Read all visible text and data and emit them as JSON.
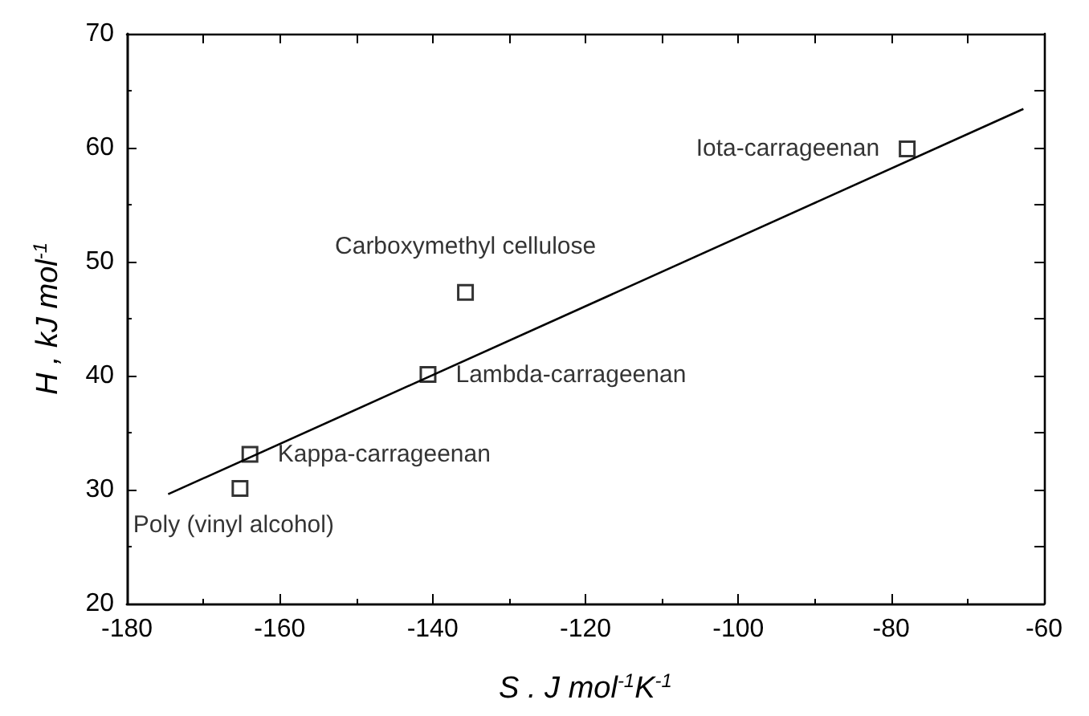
{
  "chart_data": {
    "type": "scatter",
    "xlabel": "S . J mol$^{-1}$K$^{-1}$",
    "ylabel": "H , kJ mol$^{-1}$",
    "xlim": [
      -180,
      -60
    ],
    "xticks": [
      -180,
      -160,
      -140,
      -120,
      -100,
      -80,
      -60
    ],
    "ylim": [
      20,
      70
    ],
    "yticks": [
      20,
      30,
      40,
      50,
      60,
      70
    ],
    "grid": false,
    "marker": "square",
    "series": [
      {
        "color": "#000000",
        "x": [
          -165.2,
          -163.9,
          -140.6,
          -135.7,
          -77.9
        ],
        "values": [
          30.1,
          33.1,
          40.1,
          47.3,
          59.9
        ]
      },
      {
        "type": "line",
        "color": "#000000",
        "marker": "none",
        "line_style": "solid",
        "x": [
          -174.6,
          -62.7
        ],
        "values": [
          29.6,
          63.4
        ]
      }
    ],
    "annotations": [
      {
        "text": "Poly (vinyl alcohol)",
        "x": -165.2,
        "y": 30.1
      },
      {
        "text": "Kappa-carrageenan",
        "x": -163.9,
        "y": 33.1
      },
      {
        "text": "Lambda-carrageenan",
        "x": -140.6,
        "y": 40.1
      },
      {
        "text": "Carboxymethyl cellulose",
        "x": -135.7,
        "y": 47.3
      },
      {
        "text": "Iota-carrageenan",
        "x": -77.9,
        "y": 59.9
      }
    ]
  }
}
